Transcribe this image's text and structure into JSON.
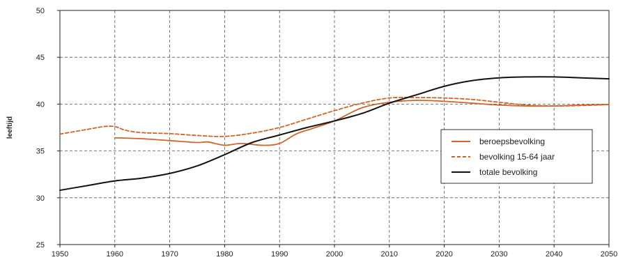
{
  "chart_data": {
    "type": "line",
    "title": "",
    "xlabel": "",
    "ylabel": "leeftijd",
    "xlim": [
      1950,
      2050
    ],
    "ylim": [
      25,
      50
    ],
    "xticks": [
      "1950",
      "1960",
      "1970",
      "1980",
      "1990",
      "2000",
      "2010",
      "2020",
      "2030",
      "2040",
      "2050"
    ],
    "yticks": [
      "25",
      "30",
      "35",
      "40",
      "45",
      "50"
    ],
    "grid": true,
    "legend_position": "right",
    "series": [
      {
        "name": "beroepsbevolking",
        "style": "solid",
        "color": "#d2642a",
        "x": [
          1960,
          1965,
          1970,
          1975,
          1977,
          1980,
          1983,
          1987,
          1990,
          1993,
          1996,
          2000,
          2005,
          2010,
          2015,
          2020,
          2025,
          2030,
          2035,
          2040,
          2045,
          2050
        ],
        "y": [
          36.4,
          36.3,
          36.1,
          35.9,
          35.95,
          35.6,
          35.8,
          35.6,
          35.8,
          36.8,
          37.4,
          38.2,
          39.6,
          40.2,
          40.4,
          40.3,
          40.1,
          39.9,
          39.8,
          39.8,
          39.9,
          39.95
        ]
      },
      {
        "name": "bevolking 15-64 jaar",
        "style": "dashed",
        "color": "#d2642a",
        "x": [
          1950,
          1955,
          1958,
          1960,
          1962,
          1965,
          1970,
          1975,
          1980,
          1985,
          1990,
          1995,
          2000,
          2005,
          2010,
          2015,
          2020,
          2025,
          2030,
          2035,
          2040,
          2045,
          2050
        ],
        "y": [
          36.8,
          37.3,
          37.6,
          37.6,
          37.2,
          36.95,
          36.85,
          36.65,
          36.55,
          36.9,
          37.5,
          38.4,
          39.3,
          40.1,
          40.65,
          40.7,
          40.65,
          40.5,
          40.2,
          39.9,
          39.8,
          39.85,
          39.95
        ]
      },
      {
        "name": "totale bevolking",
        "style": "solid",
        "color": "#111111",
        "x": [
          1950,
          1955,
          1960,
          1965,
          1970,
          1975,
          1980,
          1985,
          1990,
          1995,
          2000,
          2005,
          2010,
          2015,
          2020,
          2025,
          2030,
          2035,
          2040,
          2045,
          2050
        ],
        "y": [
          30.8,
          31.3,
          31.8,
          32.1,
          32.6,
          33.4,
          34.6,
          35.9,
          36.7,
          37.5,
          38.2,
          39.0,
          40.1,
          41.0,
          41.9,
          42.5,
          42.8,
          42.9,
          42.9,
          42.8,
          42.7
        ]
      }
    ]
  }
}
